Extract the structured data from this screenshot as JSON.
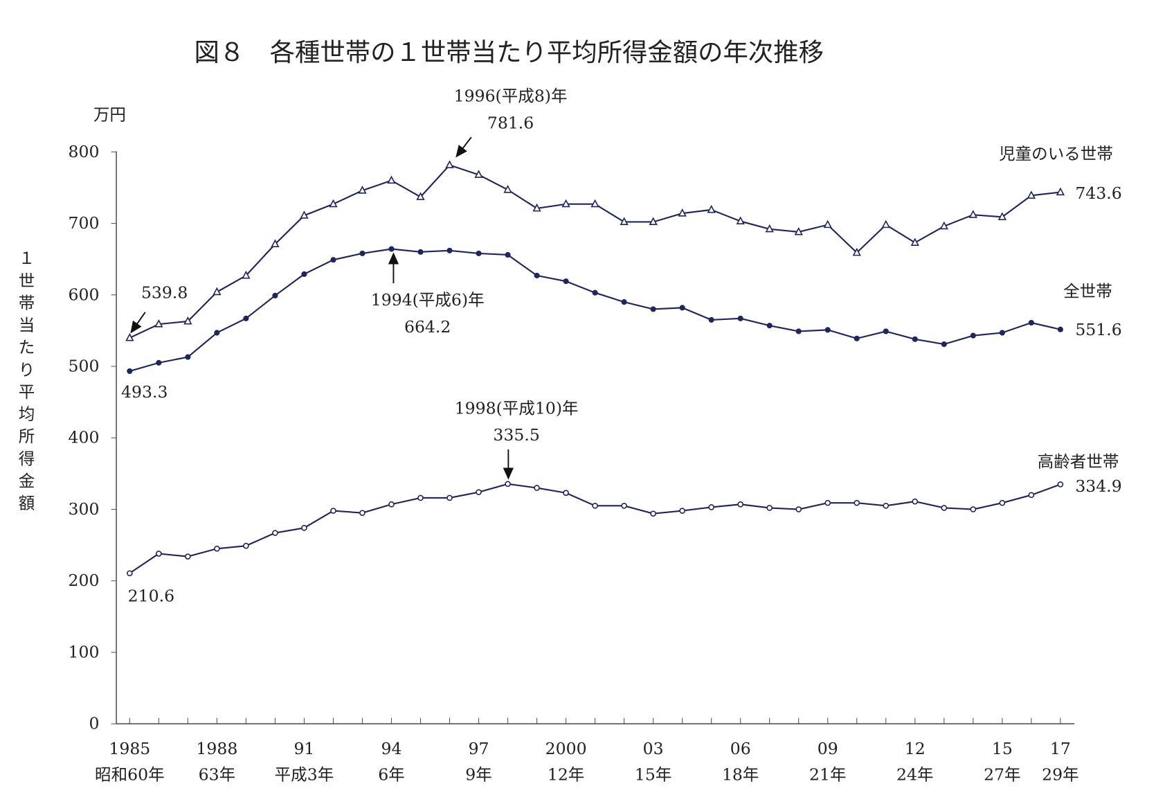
{
  "chart_data": {
    "type": "line",
    "title": "図８　各種世帯の１世帯当たり平均所得金額の年次推移",
    "ylabel": "１世帯当たり平均所得金額",
    "yunit": "万円",
    "ylim": [
      0,
      800
    ],
    "yticks": [
      0,
      100,
      200,
      300,
      400,
      500,
      600,
      700,
      800
    ],
    "x": [
      1985,
      1986,
      1987,
      1988,
      1989,
      1990,
      1991,
      1992,
      1993,
      1994,
      1995,
      1996,
      1997,
      1998,
      1999,
      2000,
      2001,
      2002,
      2003,
      2004,
      2005,
      2006,
      2007,
      2008,
      2009,
      2010,
      2011,
      2012,
      2013,
      2014,
      2015,
      2016,
      2017
    ],
    "xtick_labels": [
      {
        "year": 1985,
        "line1": "1985",
        "line2": "昭和60年"
      },
      {
        "year": 1988,
        "line1": "1988",
        "line2": "63年"
      },
      {
        "year": 1991,
        "line1": "91",
        "line2": "平成3年"
      },
      {
        "year": 1994,
        "line1": "94",
        "line2": "6年"
      },
      {
        "year": 1997,
        "line1": "97",
        "line2": "9年"
      },
      {
        "year": 2000,
        "line1": "2000",
        "line2": "12年"
      },
      {
        "year": 2003,
        "line1": "03",
        "line2": "15年"
      },
      {
        "year": 2006,
        "line1": "06",
        "line2": "18年"
      },
      {
        "year": 2009,
        "line1": "09",
        "line2": "21年"
      },
      {
        "year": 2012,
        "line1": "12",
        "line2": "24年"
      },
      {
        "year": 2015,
        "line1": "15",
        "line2": "27年"
      },
      {
        "year": 2017,
        "line1": "17",
        "line2": "29年"
      }
    ],
    "grid": false,
    "color": "#1f2659",
    "series": [
      {
        "name": "児童のいる世帯",
        "marker": "triangle",
        "end_label": "743.6",
        "values": [
          539.8,
          559,
          563,
          604,
          627,
          671,
          711,
          727,
          746,
          760,
          737,
          781.6,
          768,
          747,
          721,
          727,
          727,
          702,
          702,
          714,
          719,
          703,
          692,
          688,
          698,
          659,
          698,
          673,
          696,
          712,
          709,
          739,
          743.6
        ]
      },
      {
        "name": "全世帯",
        "marker": "dot",
        "end_label": "551.6",
        "values": [
          493.3,
          505,
          513,
          547,
          567,
          599,
          629,
          649,
          658,
          664.2,
          660,
          662,
          658,
          656,
          627,
          619,
          603,
          590,
          580,
          582,
          565,
          567,
          557,
          549,
          551,
          539,
          549,
          538,
          531,
          543,
          547,
          561,
          551.6
        ]
      },
      {
        "name": "高齢者世帯",
        "marker": "circle",
        "end_label": "334.9",
        "values": [
          210.6,
          238,
          234,
          245,
          249,
          267,
          274,
          298,
          295,
          307,
          316,
          316,
          324,
          335.5,
          330,
          323,
          305,
          305,
          294,
          298,
          303,
          307,
          302,
          300,
          309,
          309,
          305,
          311,
          302,
          300,
          309,
          320,
          334.9
        ]
      }
    ],
    "annotations": [
      {
        "text": "539.8"
      },
      {
        "text": "493.3"
      },
      {
        "text": "210.6"
      },
      {
        "text": "1996(平成8)年",
        "text2": "781.6"
      },
      {
        "text": "1994(平成6)年",
        "text2": "664.2"
      },
      {
        "text": "1998(平成10)年",
        "text2": "335.5"
      }
    ]
  }
}
